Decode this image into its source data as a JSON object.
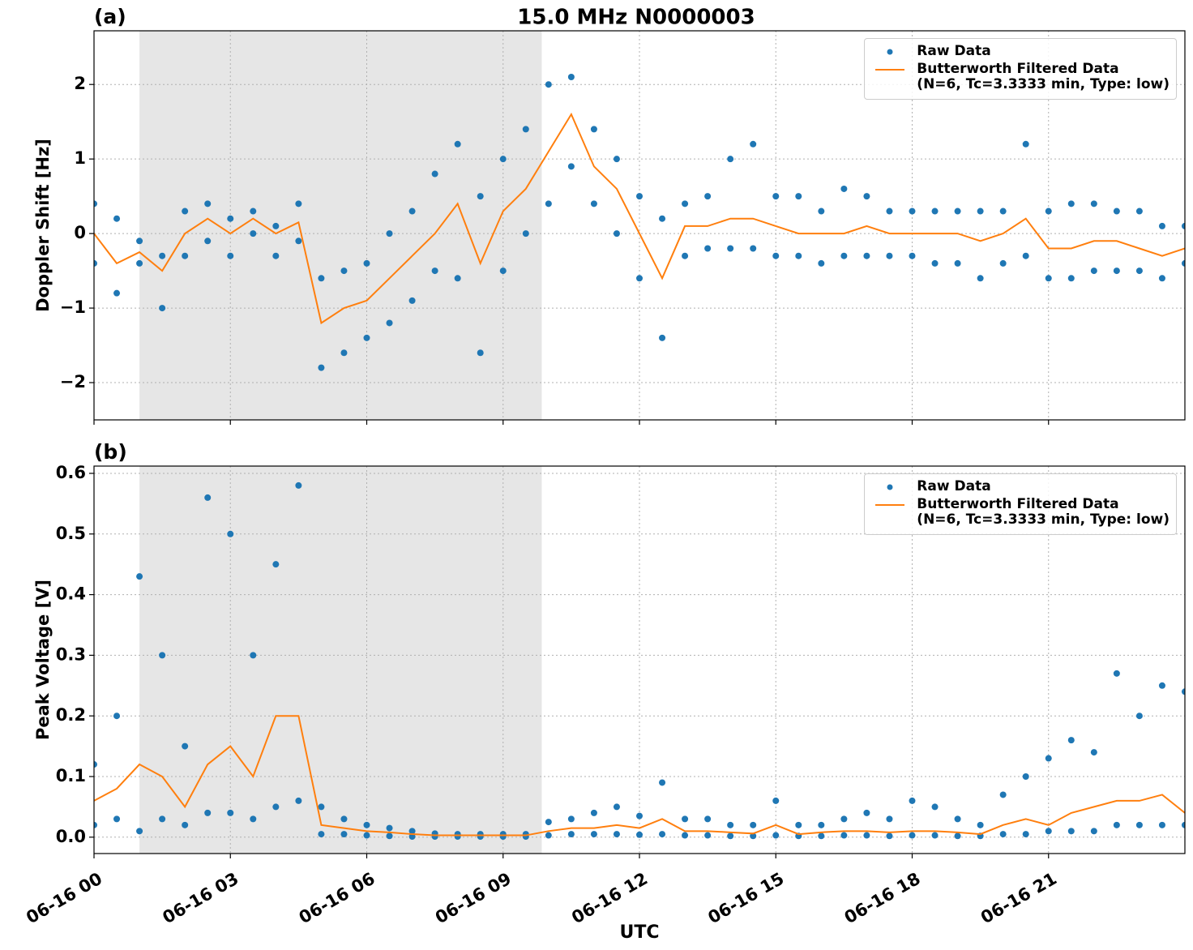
{
  "chart_data": [
    {
      "type": "line",
      "title": "15.0 MHz N0000003",
      "panel_label": "(a)",
      "ylabel": "Doppler Shift [Hz]",
      "x": [
        0,
        0.5,
        1,
        1.5,
        2,
        2.5,
        3,
        3.5,
        4,
        4.5,
        5,
        5.5,
        6,
        6.5,
        7,
        7.5,
        8,
        8.5,
        9,
        9.5,
        10,
        10.5,
        11,
        11.5,
        12,
        12.5,
        13,
        13.5,
        14,
        14.5,
        15,
        15.5,
        16,
        16.5,
        17,
        17.5,
        18,
        18.5,
        19,
        19.5,
        20,
        20.5,
        21,
        21.5,
        22,
        22.5,
        23,
        23.5,
        24
      ],
      "xlim": [
        0,
        24
      ],
      "xticks": [
        0,
        3,
        6,
        9,
        12,
        15,
        18,
        21
      ],
      "ylim": [
        -2.5,
        2.72
      ],
      "yticks": [
        {
          "value": -2,
          "label": "−2"
        },
        {
          "value": -1,
          "label": "−1"
        },
        0,
        1,
        2
      ],
      "grid": true,
      "legend": "upper right",
      "shaded_span": [
        1.0,
        9.85
      ],
      "shade_color": "#e6e6e6",
      "series": [
        {
          "name": "Raw Data",
          "color": "#1f77b4",
          "style": "markers",
          "x": [
            0,
            0,
            0.5,
            0.5,
            1,
            1,
            1.5,
            1.5,
            2,
            2,
            2.5,
            2.5,
            3,
            3,
            3.5,
            3.5,
            4,
            4,
            4.5,
            4.5,
            5,
            5,
            5.5,
            5.5,
            6,
            6,
            6.5,
            6.5,
            7,
            7,
            7.5,
            7.5,
            8,
            8,
            8.5,
            8.5,
            9,
            9,
            9.5,
            9.5,
            10,
            10,
            10.5,
            10.5,
            11,
            11,
            11.5,
            11.5,
            12,
            12,
            12.5,
            12.5,
            13,
            13,
            13.5,
            13.5,
            14,
            14,
            14.5,
            14.5,
            15,
            15,
            15.5,
            15.5,
            16,
            16,
            16.5,
            16.5,
            17,
            17,
            17.5,
            17.5,
            18,
            18,
            18.5,
            18.5,
            19,
            19,
            19.5,
            19.5,
            20,
            20,
            20.5,
            20.5,
            21,
            21,
            21.5,
            21.5,
            22,
            22,
            22.5,
            22.5,
            23,
            23,
            23.5,
            23.5,
            24,
            24
          ],
          "values": [
            0.4,
            -0.4,
            0.2,
            -0.8,
            -0.1,
            -0.4,
            -0.3,
            -1.0,
            0.3,
            -0.3,
            0.4,
            -0.1,
            0.2,
            -0.3,
            0.3,
            0.0,
            0.1,
            -0.3,
            0.4,
            -0.1,
            -0.6,
            -1.8,
            -0.5,
            -1.6,
            -0.4,
            -1.4,
            0.0,
            -1.2,
            0.3,
            -0.9,
            0.8,
            -0.5,
            1.2,
            -0.6,
            0.5,
            -1.6,
            1.0,
            -0.5,
            1.4,
            0.0,
            2.0,
            0.4,
            2.1,
            0.9,
            1.4,
            0.4,
            1.0,
            0.0,
            0.5,
            -0.6,
            0.2,
            -1.4,
            0.4,
            -0.3,
            0.5,
            -0.2,
            1.0,
            -0.2,
            1.2,
            -0.2,
            0.5,
            -0.3,
            0.5,
            -0.3,
            0.3,
            -0.4,
            0.6,
            -0.3,
            0.5,
            -0.3,
            0.3,
            -0.3,
            0.3,
            -0.3,
            0.3,
            -0.4,
            0.3,
            -0.4,
            0.3,
            -0.6,
            0.3,
            -0.4,
            1.2,
            -0.3,
            0.3,
            -0.6,
            0.4,
            -0.6,
            0.4,
            -0.5,
            0.3,
            -0.5,
            0.3,
            -0.5,
            0.1,
            -0.6,
            0.1,
            -0.4
          ]
        },
        {
          "name": "Butterworth Filtered Data\n(N=6, Tc=3.3333 min, Type: low)",
          "color": "#ff7f0e",
          "style": "line",
          "values": [
            0.0,
            -0.4,
            -0.25,
            -0.5,
            0.0,
            0.2,
            0.0,
            0.2,
            0.0,
            0.15,
            -1.2,
            -1.0,
            -0.9,
            -0.6,
            -0.3,
            0.0,
            0.4,
            -0.4,
            0.3,
            0.6,
            1.1,
            1.6,
            0.9,
            0.6,
            0.0,
            -0.6,
            0.1,
            0.1,
            0.2,
            0.2,
            0.1,
            0.0,
            0.0,
            0.0,
            0.1,
            0.0,
            0.0,
            0.0,
            0.0,
            -0.1,
            0.0,
            0.2,
            -0.2,
            -0.2,
            -0.1,
            -0.1,
            -0.2,
            -0.3,
            -0.2
          ]
        }
      ]
    },
    {
      "type": "line",
      "panel_label": "(b)",
      "ylabel": "Peak Voltage [V]",
      "xlabel": "UTC",
      "x": [
        0,
        0.5,
        1,
        1.5,
        2,
        2.5,
        3,
        3.5,
        4,
        4.5,
        5,
        5.5,
        6,
        6.5,
        7,
        7.5,
        8,
        8.5,
        9,
        9.5,
        10,
        10.5,
        11,
        11.5,
        12,
        12.5,
        13,
        13.5,
        14,
        14.5,
        15,
        15.5,
        16,
        16.5,
        17,
        17.5,
        18,
        18.5,
        19,
        19.5,
        20,
        20.5,
        21,
        21.5,
        22,
        22.5,
        23,
        23.5,
        24
      ],
      "xlim": [
        0,
        24
      ],
      "xticks": [
        {
          "value": 0,
          "label": "06-16 00"
        },
        {
          "value": 3,
          "label": "06-16 03"
        },
        {
          "value": 6,
          "label": "06-16 06"
        },
        {
          "value": 9,
          "label": "06-16 09"
        },
        {
          "value": 12,
          "label": "06-16 12"
        },
        {
          "value": 15,
          "label": "06-16 15"
        },
        {
          "value": 18,
          "label": "06-16 18"
        },
        {
          "value": 21,
          "label": "06-16 21"
        }
      ],
      "ylim": [
        -0.027,
        0.612
      ],
      "yticks": [
        {
          "value": 0,
          "label": "0.0"
        },
        0.1,
        0.2,
        0.3,
        0.4,
        0.5,
        0.6
      ],
      "grid": true,
      "legend": "upper right",
      "shaded_span": [
        1.0,
        9.85
      ],
      "shade_color": "#e6e6e6",
      "series": [
        {
          "name": "Raw Data",
          "color": "#1f77b4",
          "style": "markers",
          "x": [
            0,
            0,
            0.5,
            0.5,
            1,
            1,
            1.5,
            1.5,
            2,
            2,
            2.5,
            2.5,
            3,
            3,
            3.5,
            3.5,
            4,
            4,
            4.5,
            4.5,
            5,
            5,
            5.5,
            5.5,
            6,
            6,
            6.5,
            6.5,
            7,
            7,
            7.5,
            7.5,
            8,
            8,
            8.5,
            8.5,
            9,
            9,
            9.5,
            9.5,
            10,
            10,
            10.5,
            10.5,
            11,
            11,
            11.5,
            11.5,
            12,
            12,
            12.5,
            12.5,
            13,
            13,
            13.5,
            13.5,
            14,
            14,
            14.5,
            14.5,
            15,
            15,
            15.5,
            15.5,
            16,
            16,
            16.5,
            16.5,
            17,
            17,
            17.5,
            17.5,
            18,
            18,
            18.5,
            18.5,
            19,
            19,
            19.5,
            19.5,
            20,
            20,
            20.5,
            20.5,
            21,
            21,
            21.5,
            21.5,
            22,
            22,
            22.5,
            22.5,
            23,
            23,
            23.5,
            23.5,
            24,
            24
          ],
          "values": [
            0.12,
            0.02,
            0.2,
            0.03,
            0.43,
            0.01,
            0.3,
            0.03,
            0.15,
            0.02,
            0.56,
            0.04,
            0.5,
            0.04,
            0.3,
            0.03,
            0.45,
            0.05,
            0.58,
            0.06,
            0.05,
            0.005,
            0.03,
            0.005,
            0.02,
            0.003,
            0.015,
            0.002,
            0.01,
            0.001,
            0.006,
            0.001,
            0.005,
            0.001,
            0.005,
            0.001,
            0.005,
            0.001,
            0.005,
            0.001,
            0.025,
            0.003,
            0.03,
            0.005,
            0.04,
            0.005,
            0.05,
            0.005,
            0.035,
            0.004,
            0.09,
            0.005,
            0.03,
            0.003,
            0.03,
            0.003,
            0.02,
            0.002,
            0.02,
            0.002,
            0.06,
            0.003,
            0.02,
            0.002,
            0.02,
            0.002,
            0.03,
            0.003,
            0.04,
            0.003,
            0.03,
            0.002,
            0.06,
            0.003,
            0.05,
            0.003,
            0.03,
            0.002,
            0.02,
            0.002,
            0.07,
            0.005,
            0.1,
            0.005,
            0.13,
            0.01,
            0.16,
            0.01,
            0.14,
            0.01,
            0.27,
            0.02,
            0.2,
            0.02,
            0.25,
            0.02,
            0.24,
            0.02
          ]
        },
        {
          "name": "Butterworth Filtered Data\n(N=6, Tc=3.3333 min, Type: low)",
          "color": "#ff7f0e",
          "style": "line",
          "values": [
            0.06,
            0.08,
            0.12,
            0.1,
            0.05,
            0.12,
            0.15,
            0.1,
            0.2,
            0.2,
            0.02,
            0.015,
            0.01,
            0.008,
            0.005,
            0.003,
            0.003,
            0.003,
            0.003,
            0.003,
            0.01,
            0.015,
            0.015,
            0.02,
            0.015,
            0.03,
            0.01,
            0.01,
            0.008,
            0.006,
            0.02,
            0.005,
            0.008,
            0.01,
            0.01,
            0.008,
            0.01,
            0.01,
            0.008,
            0.005,
            0.02,
            0.03,
            0.02,
            0.04,
            0.05,
            0.06,
            0.06,
            0.07,
            0.04
          ]
        }
      ]
    }
  ]
}
